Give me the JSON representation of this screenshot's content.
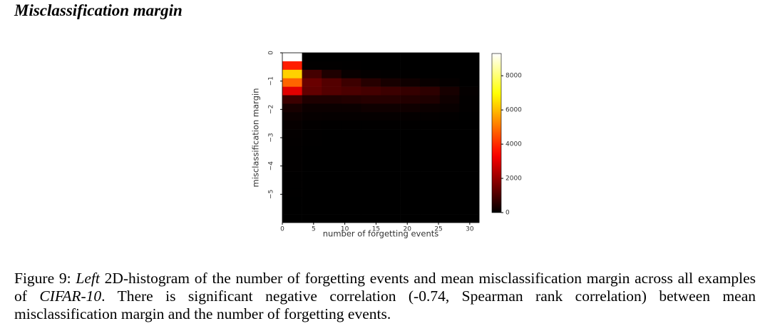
{
  "title": "Misclassification margin",
  "chart_data": {
    "type": "heatmap",
    "xlabel": "number of forgetting events",
    "ylabel": "misclassification margin",
    "xlim": [
      0,
      31.5
    ],
    "ylim": [
      0,
      -6
    ],
    "xticks": [
      0,
      5,
      10,
      15,
      20,
      25,
      30
    ],
    "yticks": [
      0,
      {
        "value": -1,
        "label": "−1"
      },
      {
        "value": -2,
        "label": "−2"
      },
      {
        "value": -3,
        "label": "−3"
      },
      {
        "value": -4,
        "label": "−4"
      },
      {
        "value": -5,
        "label": "−5"
      }
    ],
    "xbins": [
      0,
      3.15,
      6.3,
      9.45,
      12.6,
      15.75,
      18.9,
      22.05,
      25.2,
      28.35,
      31.5
    ],
    "ybins": [
      0,
      -0.3,
      -0.6,
      -0.9,
      -1.2,
      -1.5,
      -1.8,
      -2.1,
      -2.4,
      -2.7,
      -3,
      -3.3,
      -3.6,
      -3.9,
      -4.2,
      -4.5,
      -4.8,
      -5.1,
      -5.4,
      -5.7,
      -6
    ],
    "values": [
      [
        9300,
        0,
        0,
        0,
        0,
        0,
        0,
        0,
        0,
        0
      ],
      [
        3800,
        30,
        20,
        10,
        0,
        0,
        0,
        0,
        0,
        0
      ],
      [
        6300,
        900,
        400,
        100,
        50,
        20,
        10,
        0,
        0,
        0
      ],
      [
        4800,
        1400,
        1100,
        800,
        500,
        300,
        200,
        100,
        50,
        0
      ],
      [
        3000,
        1300,
        1100,
        1000,
        900,
        800,
        700,
        600,
        300,
        50
      ],
      [
        800,
        400,
        400,
        450,
        500,
        500,
        450,
        400,
        200,
        30
      ],
      [
        300,
        150,
        150,
        150,
        200,
        200,
        200,
        150,
        100,
        20
      ],
      [
        150,
        80,
        60,
        60,
        60,
        60,
        50,
        40,
        30,
        0
      ],
      [
        80,
        20,
        10,
        10,
        10,
        10,
        10,
        0,
        0,
        0
      ],
      [
        50,
        10,
        5,
        5,
        0,
        0,
        0,
        0,
        0,
        0
      ],
      [
        40,
        10,
        5,
        0,
        0,
        0,
        0,
        0,
        0,
        0
      ],
      [
        30,
        5,
        0,
        0,
        0,
        0,
        0,
        0,
        0,
        0
      ],
      [
        20,
        5,
        0,
        0,
        0,
        0,
        0,
        0,
        0,
        0
      ],
      [
        20,
        0,
        0,
        0,
        0,
        0,
        0,
        0,
        0,
        0
      ],
      [
        10,
        0,
        0,
        0,
        0,
        0,
        0,
        0,
        0,
        0
      ],
      [
        10,
        0,
        0,
        0,
        0,
        0,
        0,
        0,
        0,
        0
      ],
      [
        10,
        0,
        0,
        0,
        0,
        0,
        0,
        0,
        0,
        0
      ],
      [
        5,
        0,
        0,
        0,
        0,
        0,
        0,
        0,
        0,
        0
      ],
      [
        5,
        0,
        0,
        0,
        0,
        0,
        0,
        0,
        0,
        0
      ],
      [
        5,
        0,
        0,
        0,
        0,
        0,
        0,
        0,
        0,
        0
      ]
    ],
    "colormap": "hot",
    "clim": [
      0,
      9300
    ],
    "cticks": [
      0,
      2000,
      4000,
      6000,
      8000
    ]
  },
  "caption": [
    {
      "text": "Figure 9:",
      "italic": false
    },
    {
      "text": "Left",
      "italic": true
    },
    {
      "text": "2D-histogram of the number of forgetting events and mean misclassification margin across all examples of",
      "italic": false
    },
    {
      "text": "CIFAR-10",
      "italic": true
    },
    {
      "text": ". There is significant negative correlation (-0.74, Spearman rank correlation) between mean misclassification margin and the number of forgetting events.",
      "italic": false
    }
  ]
}
